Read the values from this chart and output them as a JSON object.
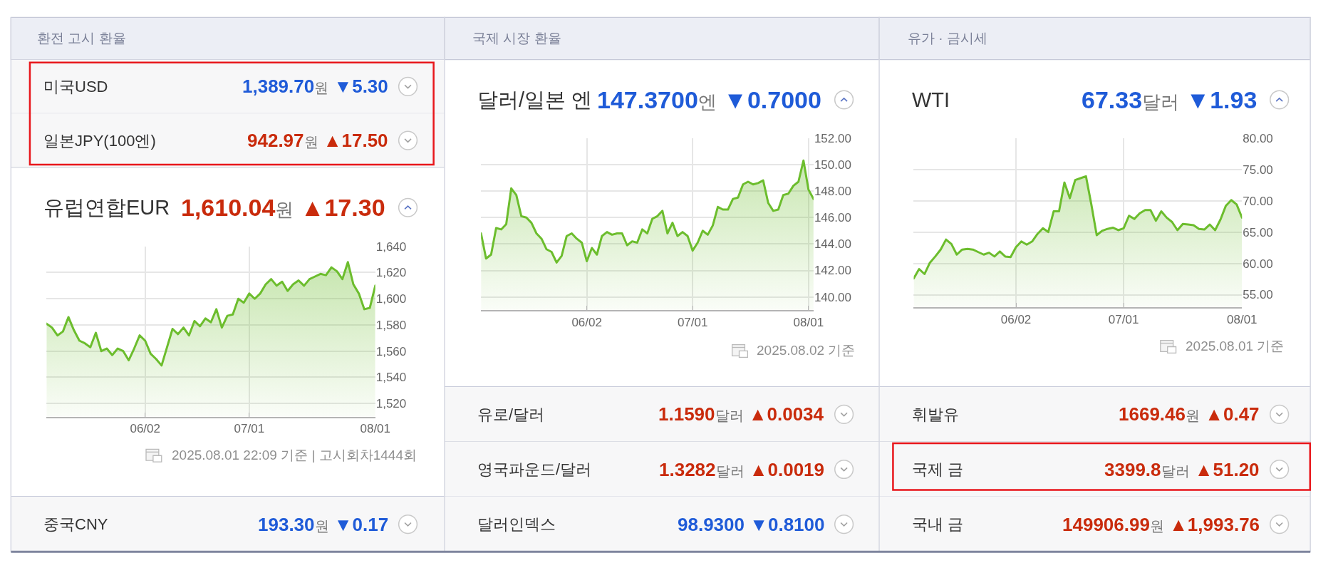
{
  "chart_data": [
    {
      "type": "other",
      "title": "환전 고시 환율",
      "annotations": [
        "미국USD",
        "1,389.70",
        "원",
        "▼5.30",
        "일본JPY(100엔)",
        "942.97",
        "원",
        "▲17.50",
        "유럽연합EUR",
        "1,610.04",
        "원",
        "▲17.30"
      ],
      "colors": [
        "#1f5bd8",
        "#c92b0c",
        "#c92b0c"
      ]
    },
    {
      "type": "area",
      "categories": [
        null,
        null,
        null,
        null,
        null,
        null,
        null,
        null,
        null,
        null,
        null,
        null,
        null,
        null,
        null,
        null,
        null,
        null,
        "06/02",
        null,
        null,
        null,
        null,
        null,
        null,
        null,
        null,
        null,
        null,
        null,
        null,
        null,
        null,
        null,
        null,
        null,
        null,
        "07/01",
        null,
        null,
        null,
        null,
        null,
        null,
        null,
        null,
        null,
        null,
        null,
        null,
        null,
        null,
        null,
        null,
        null,
        null,
        null,
        null,
        null,
        null,
        "08/01"
      ],
      "values": [
        1581,
        1578,
        1572,
        1575,
        1586,
        1576,
        1568,
        1566,
        1563,
        1574,
        1560,
        1562,
        1557,
        1562,
        1560,
        1553,
        1562,
        1572,
        1568,
        1558,
        1554,
        1549,
        1563,
        1577,
        1573,
        1578,
        1572,
        1583,
        1579,
        1585,
        1582,
        1592,
        1578,
        1587,
        1588,
        1600,
        1597,
        1604,
        1600,
        1604,
        1611,
        1615,
        1610,
        1613,
        1606,
        1611,
        1614,
        1610,
        1615,
        1617,
        1619,
        1618,
        1624,
        1621,
        1615,
        1628,
        1611,
        1604,
        1592,
        1593,
        1610
      ],
      "color": "#6cbd2d",
      "ylim": [
        1510,
        1640
      ],
      "yticks": [
        {
          "value": 1520,
          "label": "1,520"
        },
        {
          "value": 1540,
          "label": "1,540"
        },
        {
          "value": 1560,
          "label": "1,560"
        },
        {
          "value": 1580,
          "label": "1,580"
        },
        {
          "value": 1600,
          "label": "1,600"
        },
        {
          "value": 1620,
          "label": "1,620"
        },
        {
          "value": 1640,
          "label": "1,640"
        }
      ],
      "grid": true,
      "annotations": [
        "2025.08.01 22:09 기준 | 고시회차1444회"
      ]
    },
    {
      "type": "other",
      "annotations": [
        "중국CNY",
        "193.30",
        "원",
        "▼0.17"
      ],
      "colors": [
        "#1f5bd8"
      ]
    },
    {
      "type": "other",
      "title": "국제 시장 환율",
      "annotations": [
        "달러/일본 엔",
        "147.3700",
        "엔",
        "▼0.7000"
      ],
      "colors": [
        "#1f5bd8"
      ]
    },
    {
      "type": "area",
      "categories": [
        null,
        null,
        null,
        null,
        null,
        null,
        null,
        null,
        null,
        null,
        null,
        null,
        null,
        null,
        null,
        null,
        null,
        null,
        null,
        null,
        null,
        "06/02",
        null,
        null,
        null,
        null,
        null,
        null,
        null,
        null,
        null,
        null,
        null,
        null,
        null,
        null,
        null,
        null,
        null,
        null,
        null,
        null,
        "07/01",
        null,
        null,
        null,
        null,
        null,
        null,
        null,
        null,
        null,
        null,
        null,
        null,
        null,
        null,
        null,
        null,
        null,
        null,
        null,
        null,
        null,
        null,
        "08/01",
        null
      ],
      "values": [
        144.8,
        142.9,
        143.2,
        145.2,
        145.1,
        145.5,
        148.2,
        147.7,
        146.1,
        146.0,
        145.6,
        144.8,
        144.4,
        143.6,
        143.4,
        142.6,
        143.1,
        144.6,
        144.8,
        144.4,
        144.1,
        142.7,
        143.7,
        143.2,
        144.6,
        144.9,
        144.7,
        144.8,
        144.8,
        143.9,
        144.2,
        144.1,
        145.1,
        144.8,
        145.9,
        146.1,
        146.5,
        144.8,
        145.6,
        144.6,
        144.9,
        144.6,
        143.5,
        144.1,
        145.0,
        144.7,
        145.4,
        146.8,
        146.6,
        146.6,
        147.4,
        147.5,
        148.5,
        148.7,
        148.5,
        148.6,
        148.8,
        147.1,
        146.5,
        146.6,
        147.7,
        147.8,
        148.4,
        148.7,
        150.3,
        148.1,
        147.4
      ],
      "color": "#6cbd2d",
      "ylim": [
        139,
        152
      ],
      "yticks": [
        {
          "value": 140,
          "label": "140.00"
        },
        {
          "value": 142,
          "label": "142.00"
        },
        {
          "value": 144,
          "label": "144.00"
        },
        {
          "value": 146,
          "label": "146.00"
        },
        {
          "value": 148,
          "label": "148.00"
        },
        {
          "value": 150,
          "label": "150.00"
        },
        {
          "value": 152,
          "label": "152.00"
        }
      ],
      "grid": true,
      "annotations": [
        "2025.08.02 기준"
      ]
    },
    {
      "type": "other",
      "annotations": [
        "유로/달러",
        "1.1590",
        "달러",
        "▲0.0034",
        "영국파운드/달러",
        "1.3282",
        "달러",
        "▲0.0019",
        "달러인덱스",
        "98.9300",
        null,
        "▼0.8100"
      ],
      "colors": [
        "#c92b0c",
        "#c92b0c",
        "#1f5bd8"
      ]
    },
    {
      "type": "other",
      "title": "유가 · 금시세",
      "annotations": [
        "WTI",
        "67.33",
        "달러",
        "▼1.93"
      ],
      "colors": [
        "#1f5bd8"
      ]
    },
    {
      "type": "area",
      "categories": [
        null,
        null,
        null,
        null,
        null,
        null,
        null,
        null,
        null,
        null,
        null,
        null,
        null,
        null,
        null,
        null,
        null,
        null,
        null,
        "06/02",
        null,
        null,
        null,
        null,
        null,
        null,
        null,
        null,
        null,
        null,
        null,
        null,
        null,
        null,
        null,
        null,
        null,
        null,
        null,
        "07/01",
        null,
        null,
        null,
        null,
        null,
        null,
        null,
        null,
        null,
        null,
        null,
        null,
        null,
        null,
        null,
        null,
        null,
        null,
        null,
        null,
        null,
        "08/01"
      ],
      "values": [
        57.6,
        59.1,
        58.3,
        60.1,
        61.1,
        62.2,
        63.8,
        63.1,
        61.4,
        62.2,
        62.3,
        62.2,
        61.8,
        61.4,
        61.7,
        61.1,
        61.9,
        61.1,
        61.0,
        62.6,
        63.5,
        63.0,
        63.5,
        64.7,
        65.6,
        65.0,
        68.3,
        68.3,
        72.9,
        70.4,
        73.3,
        73.6,
        73.9,
        69.4,
        64.5,
        65.2,
        65.5,
        65.7,
        65.3,
        65.6,
        67.6,
        67.1,
        68.0,
        68.5,
        68.5,
        66.8,
        68.3,
        67.3,
        66.6,
        65.3,
        66.3,
        66.2,
        66.1,
        65.5,
        65.4,
        66.2,
        65.3,
        67.0,
        69.2,
        70.1,
        69.4,
        67.3
      ],
      "color": "#6cbd2d",
      "ylim": [
        53,
        80
      ],
      "yticks": [
        {
          "value": 55,
          "label": "55.00"
        },
        {
          "value": 60,
          "label": "60.00"
        },
        {
          "value": 65,
          "label": "65.00"
        },
        {
          "value": 70,
          "label": "70.00"
        },
        {
          "value": 75,
          "label": "75.00"
        },
        {
          "value": 80,
          "label": "80.00"
        }
      ],
      "grid": true,
      "annotations": [
        "2025.08.01 기준"
      ]
    },
    {
      "type": "other",
      "annotations": [
        "휘발유",
        "1669.46",
        "원",
        "▲0.47",
        "국제 금",
        "3399.8",
        "달러",
        "▲51.20",
        "국내 금",
        "149906.99",
        "원",
        "▲1,993.76"
      ],
      "colors": [
        "#c92b0c",
        "#c92b0c",
        "#c92b0c"
      ]
    }
  ]
}
